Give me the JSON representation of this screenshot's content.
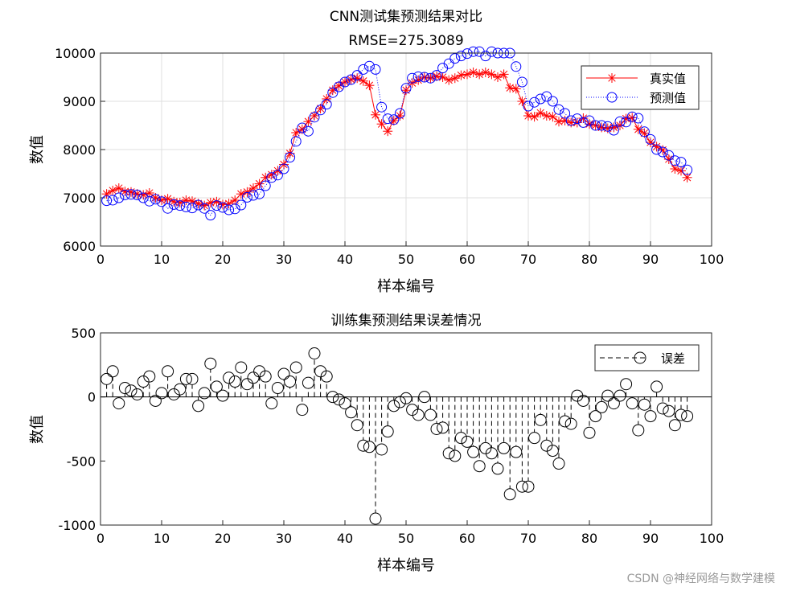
{
  "watermark": "CSDN @神经网络与数学建模",
  "chart_data": [
    {
      "type": "line",
      "title_line1": "CNN测试集预测结果对比",
      "title_line2": "RMSE=275.3089",
      "xlabel": "样本编号",
      "ylabel": "数值",
      "xlim": [
        0,
        100
      ],
      "ylim": [
        6000,
        10000
      ],
      "xticks": [
        "0",
        "10",
        "20",
        "30",
        "40",
        "50",
        "60",
        "70",
        "80",
        "90",
        "100"
      ],
      "yticks": [
        "6000",
        "7000",
        "8000",
        "9000",
        "10000"
      ],
      "legend_position": "top-right",
      "series": [
        {
          "name": "真实值",
          "color": "#ff0000",
          "marker": "asterisk",
          "line": "solid",
          "x": [
            1,
            2,
            3,
            4,
            5,
            6,
            7,
            8,
            9,
            10,
            11,
            12,
            13,
            14,
            15,
            16,
            17,
            18,
            19,
            20,
            21,
            22,
            23,
            24,
            25,
            26,
            27,
            28,
            29,
            30,
            31,
            32,
            33,
            34,
            35,
            36,
            37,
            38,
            39,
            40,
            41,
            42,
            43,
            44,
            45,
            46,
            47,
            48,
            49,
            50,
            51,
            52,
            53,
            54,
            55,
            56,
            57,
            58,
            59,
            60,
            61,
            62,
            63,
            64,
            65,
            66,
            67,
            68,
            69,
            70,
            71,
            72,
            73,
            74,
            75,
            76,
            77,
            78,
            79,
            80,
            81,
            82,
            83,
            84,
            85,
            86,
            87,
            88,
            89,
            90,
            91,
            92,
            93,
            94,
            95,
            96
          ],
          "values": [
            7080,
            7150,
            7200,
            7130,
            7120,
            7080,
            7060,
            7100,
            7000,
            6950,
            6980,
            6920,
            6900,
            6950,
            6930,
            6880,
            6840,
            6900,
            6920,
            6860,
            6880,
            6950,
            7080,
            7120,
            7200,
            7290,
            7420,
            7480,
            7560,
            7690,
            7920,
            8350,
            8420,
            8580,
            8700,
            8850,
            9050,
            9230,
            9320,
            9400,
            9450,
            9480,
            9420,
            9330,
            8720,
            8530,
            8380,
            8600,
            8700,
            9230,
            9380,
            9440,
            9500,
            9480,
            9520,
            9500,
            9440,
            9480,
            9540,
            9560,
            9600,
            9560,
            9600,
            9560,
            9500,
            9560,
            9280,
            9260,
            9000,
            8700,
            8680,
            8760,
            8700,
            8680,
            8580,
            8600,
            8560,
            8560,
            8650,
            8530,
            8500,
            8460,
            8440,
            8460,
            8500,
            8640,
            8660,
            8420,
            8340,
            8150,
            8060,
            7990,
            7800,
            7600,
            7560,
            7420
          ]
        },
        {
          "name": "预测值",
          "color": "#0000ff",
          "marker": "circle",
          "line": "dotted",
          "x": [
            1,
            2,
            3,
            4,
            5,
            6,
            7,
            8,
            9,
            10,
            11,
            12,
            13,
            14,
            15,
            16,
            17,
            18,
            19,
            20,
            21,
            22,
            23,
            24,
            25,
            26,
            27,
            28,
            29,
            30,
            31,
            32,
            33,
            34,
            35,
            36,
            37,
            38,
            39,
            40,
            41,
            42,
            43,
            44,
            45,
            46,
            47,
            48,
            49,
            50,
            51,
            52,
            53,
            54,
            55,
            56,
            57,
            58,
            59,
            60,
            61,
            62,
            63,
            64,
            65,
            66,
            67,
            68,
            69,
            70,
            71,
            72,
            73,
            74,
            75,
            76,
            77,
            78,
            79,
            80,
            81,
            82,
            83,
            84,
            85,
            86,
            87,
            88,
            89,
            90,
            91,
            92,
            93,
            94,
            95,
            96
          ],
          "values": [
            6940,
            6950,
            7000,
            7060,
            7070,
            7060,
            7000,
            6930,
            6970,
            6920,
            6780,
            6860,
            6840,
            6810,
            6790,
            6850,
            6780,
            6640,
            6840,
            6800,
            6750,
            6770,
            6850,
            7010,
            7050,
            7080,
            7250,
            7420,
            7470,
            7600,
            7840,
            8170,
            8450,
            8380,
            8670,
            8820,
            8940,
            9180,
            9300,
            9400,
            9450,
            9540,
            9660,
            9730,
            9660,
            8880,
            8640,
            8620,
            8750,
            9270,
            9480,
            9510,
            9500,
            9480,
            9540,
            9690,
            9780,
            9890,
            9940,
            9990,
            10030,
            10030,
            9940,
            10030,
            10000,
            10000,
            10000,
            9720,
            9400,
            8900,
            8980,
            9050,
            9100,
            9000,
            8830,
            8750,
            8600,
            8640,
            8560,
            8600,
            8500,
            8500,
            8480,
            8400,
            8580,
            8570,
            8680,
            8650,
            8370,
            8210,
            8000,
            7950,
            7880,
            7770,
            7740,
            7580
          ]
        }
      ]
    },
    {
      "type": "stem",
      "title": "训练集预测结果误差情况",
      "xlabel": "样本编号",
      "ylabel": "数值",
      "xlim": [
        0,
        100
      ],
      "ylim": [
        -1000,
        500
      ],
      "xticks": [
        "0",
        "10",
        "20",
        "30",
        "40",
        "50",
        "60",
        "70",
        "80",
        "90",
        "100"
      ],
      "yticks": [
        "500",
        "0",
        "-500",
        "-1000"
      ],
      "legend_position": "top-right",
      "series": [
        {
          "name": "误差",
          "color": "#000000",
          "marker": "circle",
          "line": "dashed",
          "x": [
            1,
            2,
            3,
            4,
            5,
            6,
            7,
            8,
            9,
            10,
            11,
            12,
            13,
            14,
            15,
            16,
            17,
            18,
            19,
            20,
            21,
            22,
            23,
            24,
            25,
            26,
            27,
            28,
            29,
            30,
            31,
            32,
            33,
            34,
            35,
            36,
            37,
            38,
            39,
            40,
            41,
            42,
            43,
            44,
            45,
            46,
            47,
            48,
            49,
            50,
            51,
            52,
            53,
            54,
            55,
            56,
            57,
            58,
            59,
            60,
            61,
            62,
            63,
            64,
            65,
            66,
            67,
            68,
            69,
            70,
            71,
            72,
            73,
            74,
            75,
            76,
            77,
            78,
            79,
            80,
            81,
            82,
            83,
            84,
            85,
            86,
            87,
            88,
            89,
            90,
            91,
            92,
            93,
            94,
            95,
            96
          ],
          "values": [
            140,
            200,
            -50,
            70,
            50,
            20,
            120,
            160,
            -30,
            30,
            200,
            20,
            60,
            140,
            140,
            -70,
            30,
            260,
            80,
            10,
            150,
            120,
            230,
            100,
            150,
            200,
            160,
            -50,
            70,
            180,
            120,
            230,
            -100,
            110,
            340,
            200,
            160,
            0,
            -20,
            -50,
            -120,
            -220,
            -380,
            -390,
            -950,
            -410,
            -270,
            -70,
            -40,
            -10,
            -100,
            -140,
            0,
            -140,
            -250,
            -240,
            -440,
            -460,
            -320,
            -350,
            -430,
            -540,
            -400,
            -440,
            -560,
            -400,
            -760,
            -430,
            -700,
            -700,
            -320,
            -180,
            -380,
            -420,
            -520,
            -190,
            -210,
            10,
            -30,
            -280,
            -150,
            -80,
            10,
            -50,
            10,
            100,
            -50,
            -260,
            -60,
            -150,
            80,
            -90,
            -110,
            -220,
            -140,
            -150
          ]
        }
      ]
    }
  ]
}
